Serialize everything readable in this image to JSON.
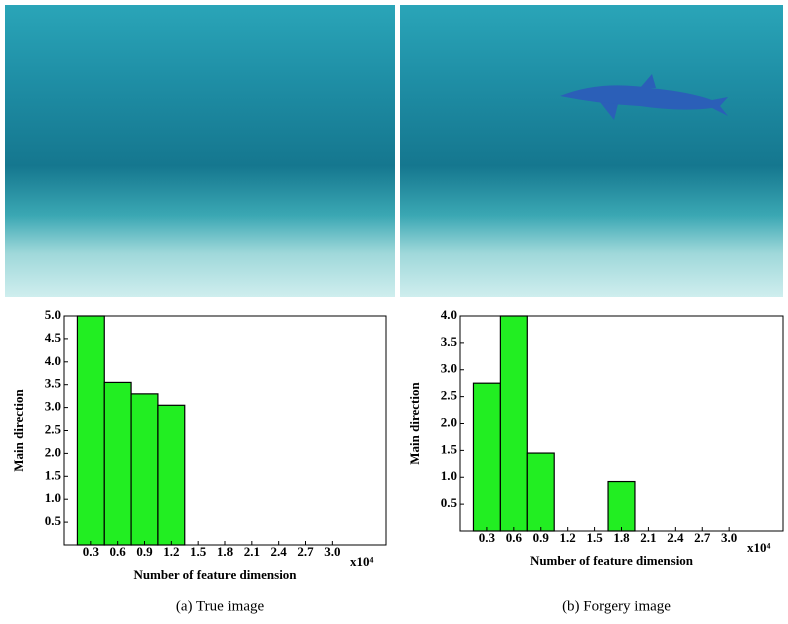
{
  "chart_data": [
    {
      "type": "bar",
      "caption": "(a) True image",
      "x": [
        0.3,
        0.6,
        0.9,
        1.2
      ],
      "values": [
        5.0,
        3.55,
        3.3,
        3.05
      ],
      "color": "#22ee22",
      "xlabel": "Number of feature dimension",
      "ylabel": "Main direction",
      "x_multiplier": "x10⁴",
      "xlim": [
        0,
        3.6
      ],
      "xticks": [
        0.3,
        0.6,
        0.9,
        1.2,
        1.5,
        1.8,
        2.1,
        2.4,
        2.7,
        {
          "value": 3,
          "label": "3.0"
        }
      ],
      "ylim": [
        0,
        5
      ],
      "yticks": [
        0.5,
        {
          "value": 1,
          "label": "1.0"
        },
        1.5,
        {
          "value": 2,
          "label": "2.0"
        },
        2.5,
        {
          "value": 3,
          "label": "3.0"
        },
        3.5,
        {
          "value": 4,
          "label": "4.0"
        },
        4.5,
        {
          "value": 5,
          "label": "5.0"
        }
      ]
    },
    {
      "type": "bar",
      "caption": "(b) Forgery image",
      "x": [
        0.3,
        0.6,
        0.9,
        1.8
      ],
      "values": [
        2.75,
        4.0,
        1.45,
        0.92
      ],
      "color": "#22ee22",
      "xlabel": "Number of feature dimension",
      "ylabel": "Main direction",
      "x_multiplier": "x10⁴",
      "xlim": [
        0,
        3.6
      ],
      "xticks": [
        0.3,
        0.6,
        0.9,
        1.2,
        1.5,
        1.8,
        2.1,
        2.4,
        2.7,
        {
          "value": 3,
          "label": "3.0"
        }
      ],
      "ylim": [
        0,
        4
      ],
      "yticks": [
        0.5,
        {
          "value": 1,
          "label": "1.0"
        },
        1.5,
        {
          "value": 2,
          "label": "2.0"
        },
        2.5,
        {
          "value": 3,
          "label": "3.0"
        },
        3.5,
        {
          "value": 4,
          "label": "4.0"
        }
      ]
    }
  ]
}
